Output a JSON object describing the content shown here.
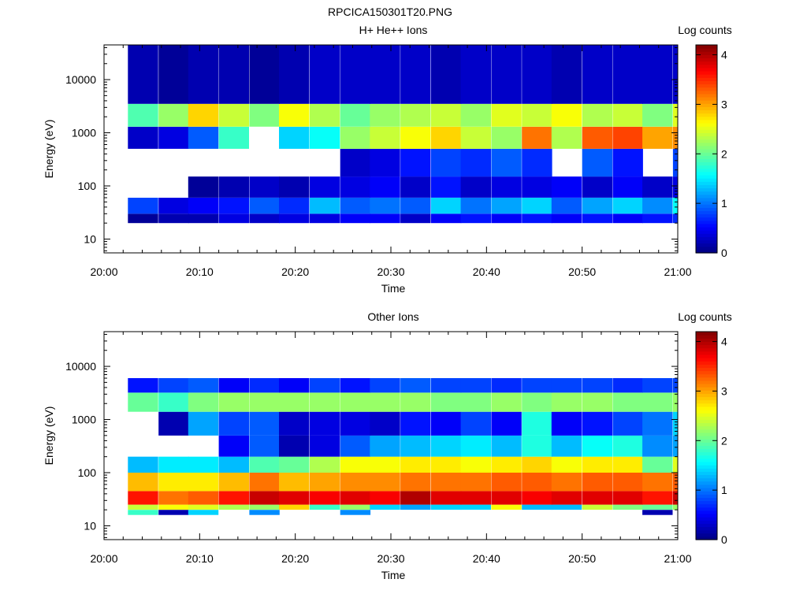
{
  "figure_title": "RPCICA150301T20.PNG",
  "chart_data": [
    {
      "type": "heatmap",
      "title": "H+ He++ Ions",
      "xlabel": "Time",
      "ylabel": "Energy (eV)",
      "xticks": [
        "20:00",
        "20:10",
        "20:20",
        "20:30",
        "20:40",
        "20:50",
        "21:00"
      ],
      "xlim_minutes": [
        0,
        60
      ],
      "yscale": "log",
      "ylim": [
        5.5,
        45000
      ],
      "yticks": [
        10,
        100,
        1000,
        10000
      ],
      "ytick_labels": [
        "10",
        "100",
        "1000",
        "10000"
      ],
      "colorbar": {
        "label": "Log counts",
        "min": 0,
        "max": 4.2,
        "ticks": [
          "0",
          "1",
          "2",
          "3",
          "4"
        ]
      },
      "time_bins": [
        "20:02.5",
        "20:05.7",
        "20:08.8",
        "20:12.0",
        "20:15.2",
        "20:18.3",
        "20:21.5",
        "20:24.7",
        "20:27.8",
        "20:31.0",
        "20:34.2",
        "20:37.3",
        "20:40.5",
        "20:43.7",
        "20:46.8",
        "20:50.0",
        "20:53.2",
        "20:56.3",
        "20:59.5"
      ],
      "energy_bands": [
        {
          "range_eV": [
            20,
            30
          ],
          "log_counts": [
            0.1,
            0.2,
            0.2,
            0.4,
            0.3,
            0.4,
            0.4,
            0.5,
            0.5,
            0.3,
            0.5,
            0.6,
            0.5,
            0.6,
            0.5,
            0.6,
            0.5,
            0.6,
            0.7
          ]
        },
        {
          "range_eV": [
            30,
            60
          ],
          "log_counts": [
            0.8,
            0.4,
            0.5,
            0.6,
            0.9,
            0.7,
            1.3,
            0.9,
            1.0,
            0.9,
            1.4,
            1.0,
            1.2,
            1.4,
            0.9,
            1.2,
            1.4,
            1.1,
            1.6
          ]
        },
        {
          "range_eV": [
            60,
            150
          ],
          "log_counts": [
            0.0,
            0.0,
            0.1,
            0.2,
            0.3,
            0.2,
            0.4,
            0.4,
            0.5,
            0.3,
            0.6,
            0.3,
            0.4,
            0.4,
            0.5,
            0.3,
            0.5,
            0.3,
            0.4
          ]
        },
        {
          "range_eV": [
            150,
            500
          ],
          "log_counts": [
            0.0,
            0.0,
            0.0,
            0.0,
            0.0,
            0.0,
            0.0,
            0.3,
            0.4,
            0.6,
            0.8,
            0.7,
            0.9,
            0.7,
            0.0,
            0.9,
            0.6,
            0.0,
            0.8
          ]
        },
        {
          "range_eV": [
            500,
            1300
          ],
          "log_counts": [
            0.3,
            0.4,
            0.9,
            1.8,
            0.0,
            1.4,
            1.6,
            2.2,
            2.4,
            2.6,
            2.8,
            2.4,
            2.2,
            3.2,
            2.3,
            3.3,
            3.4,
            3.0,
            3.1
          ]
        },
        {
          "range_eV": [
            1300,
            3500
          ],
          "log_counts": [
            1.9,
            2.2,
            2.8,
            2.4,
            2.1,
            2.6,
            2.3,
            2.0,
            2.2,
            2.3,
            2.4,
            2.2,
            2.5,
            2.4,
            2.6,
            2.3,
            2.4,
            2.1,
            2.5
          ]
        },
        {
          "range_eV": [
            3500,
            45000
          ],
          "log_counts": [
            0.2,
            0.1,
            0.2,
            0.2,
            0.1,
            0.2,
            0.3,
            0.3,
            0.3,
            0.3,
            0.2,
            0.3,
            0.3,
            0.3,
            0.2,
            0.3,
            0.3,
            0.3,
            0.3
          ]
        }
      ]
    },
    {
      "type": "heatmap",
      "title": "Other Ions",
      "xlabel": "Time",
      "ylabel": "Energy (eV)",
      "xticks": [
        "20:00",
        "20:10",
        "20:20",
        "20:30",
        "20:40",
        "20:50",
        "21:00"
      ],
      "xlim_minutes": [
        0,
        60
      ],
      "yscale": "log",
      "ylim": [
        5.5,
        45000
      ],
      "yticks": [
        10,
        100,
        1000,
        10000
      ],
      "ytick_labels": [
        "10",
        "100",
        "1000",
        "10000"
      ],
      "colorbar": {
        "label": "Log counts",
        "min": 0,
        "max": 4.2,
        "ticks": [
          "0",
          "1",
          "2",
          "3",
          "4"
        ]
      },
      "time_bins": [
        "20:02.5",
        "20:05.7",
        "20:08.8",
        "20:12.0",
        "20:15.2",
        "20:18.3",
        "20:21.5",
        "20:24.7",
        "20:27.8",
        "20:31.0",
        "20:34.2",
        "20:37.3",
        "20:40.5",
        "20:43.7",
        "20:46.8",
        "20:50.0",
        "20:53.2",
        "20:56.3",
        "20:59.5"
      ],
      "energy_bands": [
        {
          "range_eV": [
            16,
            20
          ],
          "log_counts": [
            1.8,
            0.2,
            1.4,
            0.0,
            1.1,
            0.0,
            0.0,
            1.1,
            0.0,
            0.0,
            0.0,
            0.0,
            0.0,
            0.0,
            0.0,
            0.0,
            0.0,
            0.2,
            0.0
          ]
        },
        {
          "range_eV": [
            20,
            25
          ],
          "log_counts": [
            2.4,
            2.6,
            2.5,
            2.3,
            2.2,
            2.8,
            1.8,
            2.2,
            1.4,
            1.2,
            1.4,
            1.4,
            2.6,
            1.3,
            1.3,
            2.4,
            2.1,
            2.0,
            2.2
          ]
        },
        {
          "range_eV": [
            25,
            45
          ],
          "log_counts": [
            3.6,
            3.2,
            3.3,
            3.6,
            3.9,
            3.8,
            3.7,
            3.8,
            3.7,
            4.0,
            3.8,
            3.8,
            3.8,
            3.7,
            3.8,
            3.8,
            3.8,
            3.6,
            3.9
          ]
        },
        {
          "range_eV": [
            45,
            100
          ],
          "log_counts": [
            2.9,
            2.7,
            2.7,
            2.9,
            3.2,
            2.9,
            3.0,
            3.1,
            3.1,
            3.2,
            3.2,
            3.2,
            3.3,
            3.3,
            3.2,
            3.3,
            3.3,
            3.2,
            3.3
          ]
        },
        {
          "range_eV": [
            100,
            200
          ],
          "log_counts": [
            1.3,
            1.5,
            1.5,
            1.3,
            1.9,
            2.0,
            2.3,
            2.6,
            2.6,
            2.7,
            2.7,
            2.6,
            2.7,
            2.8,
            2.6,
            2.7,
            2.7,
            2.0,
            2.5
          ]
        },
        {
          "range_eV": [
            200,
            500
          ],
          "log_counts": [
            0.0,
            0.0,
            0.0,
            0.5,
            0.9,
            0.2,
            0.4,
            0.9,
            1.2,
            1.3,
            1.4,
            1.5,
            1.3,
            1.7,
            1.3,
            1.6,
            1.7,
            1.1,
            1.2
          ]
        },
        {
          "range_eV": [
            500,
            1400
          ],
          "log_counts": [
            0.0,
            0.2,
            1.2,
            0.8,
            0.9,
            0.3,
            0.4,
            0.4,
            0.3,
            0.6,
            0.5,
            0.8,
            0.5,
            1.7,
            0.5,
            0.6,
            0.8,
            1.0,
            1.4
          ]
        },
        {
          "range_eV": [
            1400,
            3200
          ],
          "log_counts": [
            2.0,
            1.8,
            2.1,
            2.2,
            2.2,
            2.2,
            2.2,
            2.2,
            2.2,
            2.2,
            2.1,
            2.1,
            2.2,
            2.1,
            2.2,
            2.2,
            2.1,
            2.1,
            2.2
          ]
        },
        {
          "range_eV": [
            3200,
            6000
          ],
          "log_counts": [
            0.6,
            0.8,
            0.9,
            0.5,
            0.7,
            0.5,
            0.8,
            0.6,
            0.8,
            0.9,
            0.8,
            0.8,
            0.7,
            0.8,
            0.8,
            0.8,
            0.7,
            0.8,
            0.8
          ]
        }
      ]
    }
  ]
}
